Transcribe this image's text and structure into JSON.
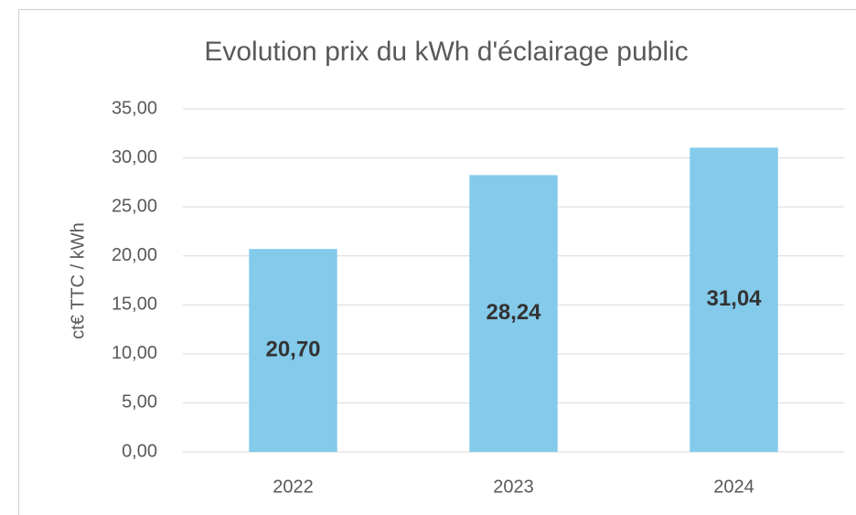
{
  "chart_data": {
    "type": "bar",
    "title": "Evolution prix du kWh d'éclairage public",
    "y_label": "ct€ TTC / kWh",
    "categories": [
      "2022",
      "2023",
      "2024"
    ],
    "values": [
      20.7,
      28.24,
      31.04
    ],
    "value_labels": [
      "20,70",
      "28,24",
      "31,04"
    ],
    "color": "#83caeb",
    "ylim": [
      0,
      35
    ],
    "yticks": [
      {
        "value": 0,
        "label": "0,00"
      },
      {
        "value": 5,
        "label": "5,00"
      },
      {
        "value": 10,
        "label": "10,00"
      },
      {
        "value": 15,
        "label": "15,00"
      },
      {
        "value": 20,
        "label": "20,00"
      },
      {
        "value": 25,
        "label": "25,00"
      },
      {
        "value": 30,
        "label": "30,00"
      },
      {
        "value": 35,
        "label": "35,00"
      }
    ],
    "grid": true
  }
}
